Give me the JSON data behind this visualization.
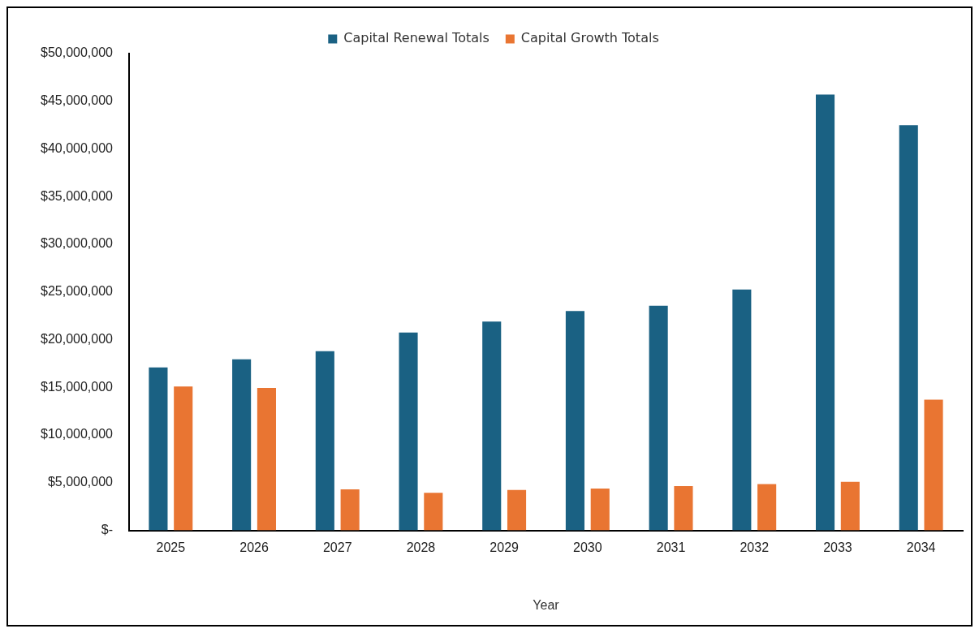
{
  "chart_data": {
    "type": "bar",
    "xlabel": "Year",
    "categories": [
      "2025",
      "2026",
      "2027",
      "2028",
      "2029",
      "2030",
      "2031",
      "2032",
      "2033",
      "2034"
    ],
    "series": [
      {
        "name": "Capital Renewal Totals",
        "color": "#1a6183",
        "values": [
          17100000,
          17950000,
          18800000,
          20750000,
          21900000,
          23000000,
          23550000,
          25250000,
          45700000,
          42500000
        ]
      },
      {
        "name": "Capital Growth Totals",
        "color": "#e97532",
        "values": [
          15100000,
          14950000,
          4300000,
          3950000,
          4250000,
          4400000,
          4650000,
          4850000,
          5100000,
          13700000
        ]
      }
    ],
    "ylim": [
      0,
      50000000
    ],
    "yticks": [
      {
        "value": 0,
        "label": "$-"
      },
      {
        "value": 5000000,
        "label": "$5,000,000"
      },
      {
        "value": 10000000,
        "label": "$10,000,000"
      },
      {
        "value": 15000000,
        "label": "$15,000,000"
      },
      {
        "value": 20000000,
        "label": "$20,000,000"
      },
      {
        "value": 25000000,
        "label": "$25,000,000"
      },
      {
        "value": 30000000,
        "label": "$30,000,000"
      },
      {
        "value": 35000000,
        "label": "$35,000,000"
      },
      {
        "value": 40000000,
        "label": "$40,000,000"
      },
      {
        "value": 45000000,
        "label": "$45,000,000"
      },
      {
        "value": 50000000,
        "label": "$50,000,000"
      }
    ],
    "grid": false,
    "legend": "top"
  }
}
